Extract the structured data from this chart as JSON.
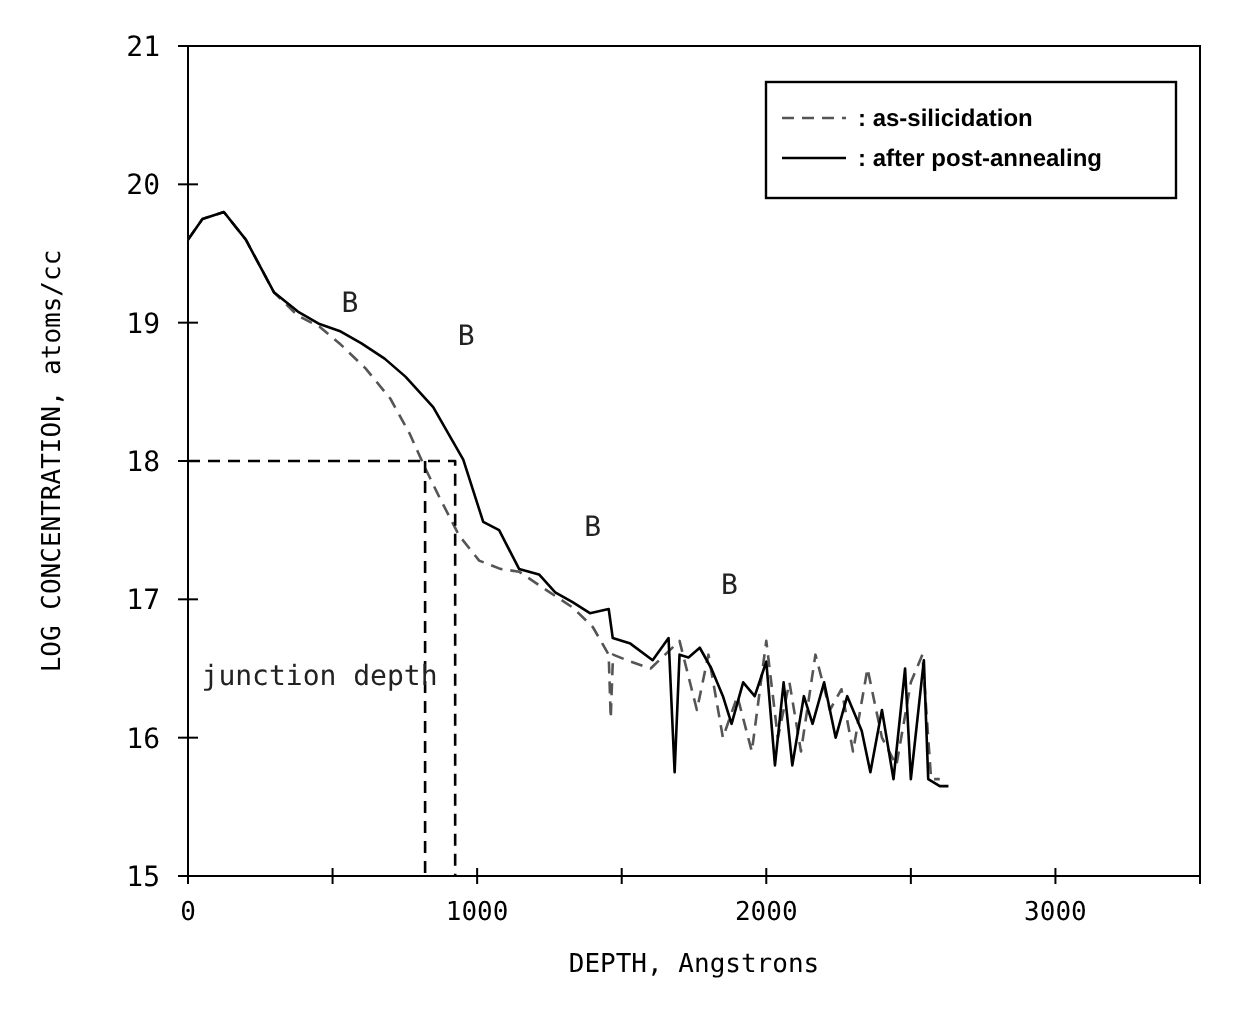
{
  "chart_data": {
    "type": "line",
    "xlabel": "DEPTH, Angstrons",
    "ylabel": "LOG CONCENTRATION, atoms/cc",
    "xlim": [
      0,
      3500
    ],
    "ylim": [
      15,
      21
    ],
    "xticks": [
      0,
      {
        "value": 500,
        "label": null
      },
      1000,
      {
        "value": 1500,
        "label": null
      },
      2000,
      {
        "value": 2500,
        "label": null
      },
      3000,
      {
        "value": 3500,
        "label": null
      }
    ],
    "yticks": [
      15,
      16,
      17,
      18,
      19,
      20,
      21
    ],
    "grid": false,
    "legend": "top right",
    "marker": "none",
    "series": [
      {
        "name": ": as-silicidation",
        "color": "#555555",
        "line_style": "dashed",
        "x": [
          0,
          50,
          124,
          200,
          297,
          380,
          455,
          524,
          614,
          700,
          766,
          820,
          869,
          938,
          1007,
          1080,
          1145,
          1230,
          1331,
          1400,
          1455,
          1462,
          1470,
          1530,
          1600,
          1650,
          1700,
          1760,
          1800,
          1850,
          1900,
          1950,
          2000,
          2040,
          2080,
          2120,
          2170,
          2220,
          2260,
          2300,
          2350,
          2400,
          2450,
          2500,
          2540,
          2570,
          2600
        ],
        "values": [
          19.6,
          19.75,
          19.8,
          19.6,
          19.22,
          19.05,
          18.97,
          18.85,
          18.67,
          18.45,
          18.2,
          17.95,
          17.74,
          17.46,
          17.28,
          17.22,
          17.2,
          17.08,
          16.94,
          16.8,
          16.6,
          16.14,
          16.6,
          16.55,
          16.5,
          16.6,
          16.7,
          16.2,
          16.6,
          16.0,
          16.3,
          15.9,
          16.7,
          16.0,
          16.4,
          15.9,
          16.6,
          16.2,
          16.35,
          15.9,
          16.5,
          16.0,
          15.8,
          16.4,
          16.6,
          15.7,
          15.7
        ]
      },
      {
        "name": ": after post-annealing",
        "color": "#000000",
        "line_style": "solid",
        "x": [
          0,
          50,
          124,
          200,
          297,
          380,
          455,
          524,
          600,
          680,
          752,
          848,
          952,
          1021,
          1076,
          1145,
          1214,
          1270,
          1330,
          1390,
          1455,
          1469,
          1530,
          1607,
          1662,
          1683,
          1700,
          1731,
          1770,
          1810,
          1850,
          1880,
          1920,
          1960,
          2000,
          2030,
          2060,
          2090,
          2130,
          2160,
          2200,
          2240,
          2280,
          2330,
          2360,
          2400,
          2440,
          2480,
          2500,
          2545,
          2560,
          2600,
          2630
        ],
        "values": [
          19.6,
          19.75,
          19.8,
          19.6,
          19.22,
          19.08,
          18.99,
          18.94,
          18.85,
          18.74,
          18.61,
          18.39,
          18.01,
          17.56,
          17.5,
          17.22,
          17.18,
          17.05,
          16.98,
          16.9,
          16.93,
          16.72,
          16.68,
          16.56,
          16.72,
          15.75,
          16.6,
          16.58,
          16.65,
          16.5,
          16.3,
          16.1,
          16.4,
          16.3,
          16.55,
          15.8,
          16.4,
          15.8,
          16.3,
          16.1,
          16.4,
          16.0,
          16.3,
          16.05,
          15.75,
          16.2,
          15.7,
          16.5,
          15.7,
          16.56,
          15.7,
          15.65,
          15.65
        ]
      },
      {
        "color": "#000000",
        "line_style": "dashed",
        "x": [
          0,
          924,
          924
        ],
        "values": [
          18,
          18,
          15
        ]
      },
      {
        "color": "#000000",
        "line_style": "dashed",
        "x": [
          820,
          820
        ],
        "values": [
          18,
          15
        ]
      }
    ],
    "annotations": [
      "B",
      "B",
      "B",
      "B",
      "junction depth"
    ]
  }
}
